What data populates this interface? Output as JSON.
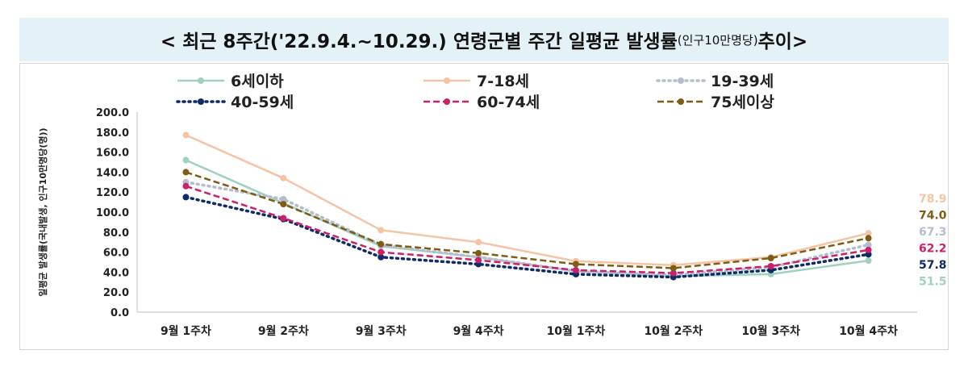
{
  "title": {
    "main_prefix": "< 최근 8주간('22.9.4.~10.29.) 연령군별 주간 일평균 발생률",
    "unit_note": "(인구10만명당)",
    "main_suffix": " 추이>"
  },
  "chart_data": {
    "type": "line",
    "ylabel": "일평균 발생률(국내발생, 인구10만명당(명))",
    "ylim": [
      0,
      200
    ],
    "yticks": [
      "0.0",
      "20.0",
      "40.0",
      "60.0",
      "80.0",
      "100.0",
      "120.0",
      "140.0",
      "160.0",
      "180.0",
      "200.0"
    ],
    "grid": false,
    "legend_position": "top",
    "categories": [
      "9월 1주차",
      "9월 2주차",
      "9월 3주차",
      "9월 4주차",
      "10월 1주차",
      "10월 2주차",
      "10월 3주차",
      "10월 4주차"
    ],
    "series": [
      {
        "name": "6세이하",
        "color": "#9fd1c2",
        "style": "solid",
        "values": [
          152,
          109,
          66,
          55,
          41,
          36,
          38,
          51.5
        ],
        "end_label": "51.5"
      },
      {
        "name": "7-18세",
        "color": "#f6c3a4",
        "style": "solid",
        "values": [
          177,
          134,
          82,
          70,
          51,
          47,
          55,
          78.9
        ],
        "end_label": "78.9"
      },
      {
        "name": "19-39세",
        "color": "#b5bdcc",
        "style": "dotted",
        "values": [
          130,
          113,
          67,
          55,
          41,
          37,
          45,
          67.3
        ],
        "end_label": "67.3"
      },
      {
        "name": "40-59세",
        "color": "#0f2a66",
        "style": "dotted",
        "values": [
          115,
          93,
          55,
          48,
          38,
          35,
          42,
          57.8
        ],
        "end_label": "57.8"
      },
      {
        "name": "60-74세",
        "color": "#cc1f6a",
        "style": "dashed",
        "values": [
          126,
          94,
          60,
          52,
          42,
          39,
          46,
          62.2
        ],
        "end_label": "62.2"
      },
      {
        "name": "75세이상",
        "color": "#7d5d12",
        "style": "dashed",
        "values": [
          140,
          108,
          68,
          59,
          48,
          44,
          54,
          74.0
        ],
        "end_label": "74.0"
      }
    ]
  }
}
